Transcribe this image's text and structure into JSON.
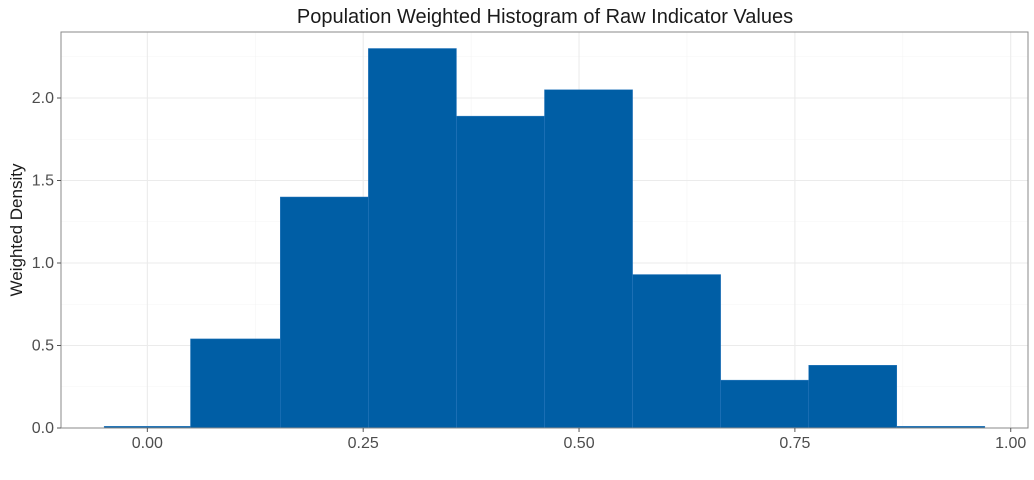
{
  "chart_data": {
    "type": "bar",
    "title": "Population Weighted Histogram of Raw Indicator Values",
    "xlabel": "",
    "ylabel": "Weighted Density",
    "xlim": [
      -0.1,
      1.02
    ],
    "ylim": [
      0,
      2.4
    ],
    "x_ticks": [
      0,
      0.25,
      0.5,
      0.75,
      1.0
    ],
    "x_tick_labels": [
      "0.00",
      "0.25",
      "0.50",
      "0.75",
      "1.00"
    ],
    "y_ticks": [
      0,
      0.5,
      1.0,
      1.5,
      2.0
    ],
    "y_tick_labels": [
      "0.0",
      "0.5",
      "1.0",
      "1.5",
      "2.0"
    ],
    "bin_edges": [
      -0.05,
      0.05,
      0.154,
      0.256,
      0.358,
      0.46,
      0.562,
      0.664,
      0.766,
      0.868,
      0.97
    ],
    "values": [
      0.01,
      0.54,
      1.4,
      2.3,
      1.89,
      2.05,
      0.93,
      0.29,
      0.38,
      0.01
    ],
    "bar_color": "#005ea5",
    "bar_edge_color": "#2b79bd",
    "grid": true
  }
}
